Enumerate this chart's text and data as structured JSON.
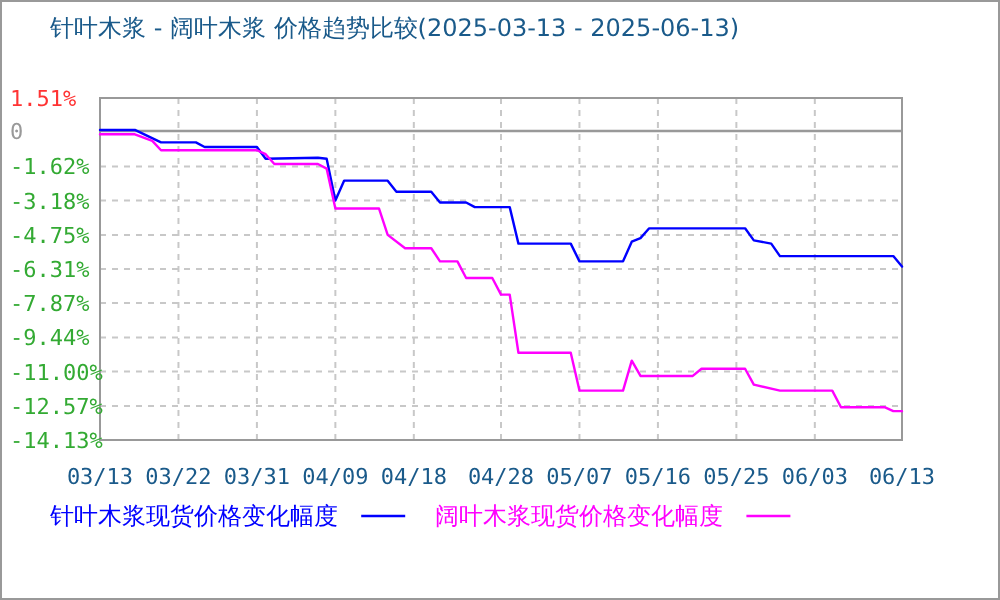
{
  "chart_data": {
    "type": "line",
    "title": "针叶木浆 - 阔叶木浆 价格趋势比较(2025-03-13 - 2025-06-13)",
    "xlim": [
      "2025-03-13",
      "2025-06-13"
    ],
    "xticks": [
      {
        "value": "2025-03-13",
        "label": "03/13"
      },
      {
        "value": "2025-03-22",
        "label": "03/22"
      },
      {
        "value": "2025-03-31",
        "label": "03/31"
      },
      {
        "value": "2025-04-09",
        "label": "04/09"
      },
      {
        "value": "2025-04-18",
        "label": "04/18"
      },
      {
        "value": "2025-04-28",
        "label": "04/28"
      },
      {
        "value": "2025-05-07",
        "label": "05/07"
      },
      {
        "value": "2025-05-16",
        "label": "05/16"
      },
      {
        "value": "2025-05-25",
        "label": "05/25"
      },
      {
        "value": "2025-06-03",
        "label": "06/03"
      },
      {
        "value": "2025-06-13",
        "label": "06/13"
      }
    ],
    "ylim": [
      -14.13,
      1.51
    ],
    "yticks": [
      {
        "value": 1.51,
        "label": "1.51%"
      },
      {
        "value": 0,
        "label": "0"
      },
      {
        "value": -1.62,
        "label": "-1.62%"
      },
      {
        "value": -3.18,
        "label": "-3.18%"
      },
      {
        "value": -4.75,
        "label": "-4.75%"
      },
      {
        "value": -6.31,
        "label": "-6.31%"
      },
      {
        "value": -7.87,
        "label": "-7.87%"
      },
      {
        "value": -9.44,
        "label": "-9.44%"
      },
      {
        "value": -11.0,
        "label": "-11.00%"
      },
      {
        "value": -12.57,
        "label": "-12.57%"
      },
      {
        "value": -14.13,
        "label": "-14.13%"
      }
    ],
    "grid": true,
    "legend": "bottom",
    "marker": "none",
    "line_style": "solid",
    "ref_lines": [
      {
        "axis": "y",
        "value": 0,
        "color": "#999999"
      }
    ],
    "series": [
      {
        "name": "针叶木浆现货价格变化幅度",
        "color": "#0000ff",
        "x": [
          "2025-03-13",
          "2025-03-17",
          "2025-03-20",
          "2025-03-24",
          "2025-03-25",
          "2025-03-31",
          "2025-04-01",
          "2025-04-07",
          "2025-04-08",
          "2025-04-09",
          "2025-04-10",
          "2025-04-15",
          "2025-04-16",
          "2025-04-20",
          "2025-04-21",
          "2025-04-24",
          "2025-04-25",
          "2025-04-29",
          "2025-04-30",
          "2025-05-06",
          "2025-05-07",
          "2025-05-12",
          "2025-05-13",
          "2025-05-14",
          "2025-05-15",
          "2025-05-26",
          "2025-05-27",
          "2025-05-29",
          "2025-05-30",
          "2025-06-12",
          "2025-06-13"
        ],
        "values": [
          0.05,
          0.05,
          -0.52,
          -0.52,
          -0.73,
          -0.73,
          -1.27,
          -1.22,
          -1.27,
          -3.18,
          -2.27,
          -2.27,
          -2.78,
          -2.78,
          -3.27,
          -3.27,
          -3.48,
          -3.48,
          -5.15,
          -5.15,
          -5.96,
          -5.96,
          -5.06,
          -4.9,
          -4.45,
          -4.45,
          -5.0,
          -5.15,
          -5.72,
          -5.72,
          -6.2
        ]
      },
      {
        "name": "阔叶木浆现货价格变化幅度",
        "color": "#ff00ff",
        "x": [
          "2025-03-13",
          "2025-03-17",
          "2025-03-19",
          "2025-03-20",
          "2025-03-31",
          "2025-04-01",
          "2025-04-02",
          "2025-04-07",
          "2025-04-08",
          "2025-04-09",
          "2025-04-14",
          "2025-04-15",
          "2025-04-17",
          "2025-04-20",
          "2025-04-21",
          "2025-04-23",
          "2025-04-24",
          "2025-04-27",
          "2025-04-28",
          "2025-04-29",
          "2025-04-30",
          "2025-05-06",
          "2025-05-07",
          "2025-05-12",
          "2025-05-13",
          "2025-05-14",
          "2025-05-20",
          "2025-05-21",
          "2025-05-26",
          "2025-05-27",
          "2025-05-30",
          "2025-06-05",
          "2025-06-06",
          "2025-06-11",
          "2025-06-12",
          "2025-06-13"
        ],
        "values": [
          -0.15,
          -0.15,
          -0.45,
          -0.88,
          -0.88,
          -1.06,
          -1.51,
          -1.51,
          -1.72,
          -3.54,
          -3.54,
          -4.75,
          -5.36,
          -5.36,
          -5.96,
          -5.96,
          -6.72,
          -6.72,
          -7.48,
          -7.48,
          -10.14,
          -10.14,
          -11.87,
          -11.87,
          -10.5,
          -11.2,
          -11.2,
          -10.87,
          -10.87,
          -11.6,
          -11.87,
          -11.87,
          -12.63,
          -12.63,
          -12.81,
          -12.81
        ]
      }
    ]
  }
}
